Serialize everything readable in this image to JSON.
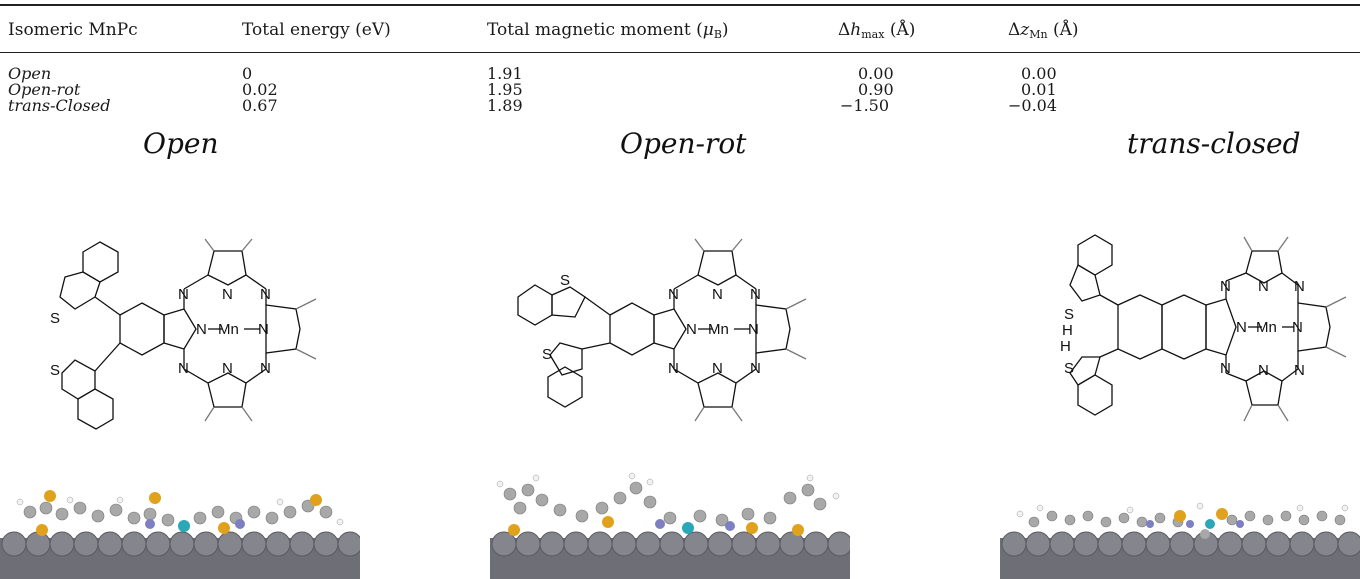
{
  "table": {
    "headers": {
      "isomer": "Isomeric MnPc",
      "energy": "Total energy (eV)",
      "moment_prefix": "Total magnetic moment (",
      "moment_symbol": "μ",
      "moment_sub": "B",
      "moment_suffix": ")",
      "dh_prefix": "Δ",
      "dh_symbol": "h",
      "dh_sub": "max",
      "dh_suffix": " (Å)",
      "dz_prefix": "Δ",
      "dz_symbol": "z",
      "dz_sub": "Mn",
      "dz_suffix": " (Å)"
    },
    "rows": [
      {
        "isomer": "Open",
        "energy": "0",
        "moment": "1.91",
        "dh": "0.00",
        "dz": "0.00"
      },
      {
        "isomer": "Open-rot",
        "energy": "0.02",
        "moment": "1.95",
        "dh": "0.90",
        "dz": "0.01"
      },
      {
        "isomer": "trans-Closed",
        "energy": "0.67",
        "moment": "1.89",
        "dh": "−1.50",
        "dz": "−0.04"
      }
    ]
  },
  "panels": {
    "open": "Open",
    "open_rot": "Open-rot",
    "trans_closed": "trans-closed"
  },
  "atoms": {
    "mn": "Mn",
    "n": "N",
    "s": "S",
    "h": "H"
  },
  "colors": {
    "carbon": "#a8a8a8",
    "sulfur": "#e0a21c",
    "nitrogen": "#7d7fc0",
    "manganese": "#2aa8b8",
    "hydrogen": "#f2f2f2",
    "substrate": "#6e6e76"
  }
}
